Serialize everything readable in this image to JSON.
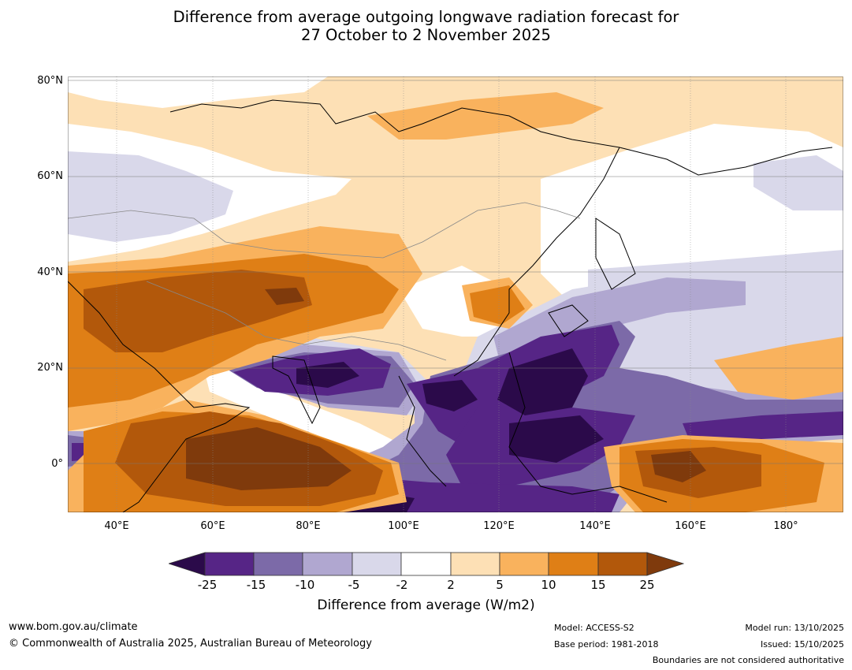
{
  "title": {
    "line1": "Difference from average outgoing longwave radiation forecast for",
    "line2": "27 October to 2 November 2025"
  },
  "axes": {
    "lat_labels": [
      "80°N",
      "60°N",
      "40°N",
      "20°N",
      "0°"
    ],
    "lon_labels": [
      "40°E",
      "60°E",
      "80°E",
      "100°E",
      "120°E",
      "140°E",
      "160°E",
      "180°"
    ],
    "lat_range": [
      -10,
      80
    ],
    "lon_range": [
      30,
      192
    ]
  },
  "colors": {
    "lt25": "#2b0a4a",
    "n25_n15": "#562586",
    "n15_n10": "#7c6aa8",
    "n10_n5": "#b0a7d0",
    "n5_n2": "#d9d8ea",
    "n2_p2": "#ffffff",
    "p2_p5": "#fde0b5",
    "p5_p10": "#f9b25d",
    "p10_p15": "#df7f16",
    "p15_p25": "#b2580b",
    "gt25": "#7f3a0c"
  },
  "colorbar": {
    "ticks": [
      "-25",
      "-15",
      "-10",
      "-5",
      "-2",
      "2",
      "5",
      "10",
      "15",
      "25"
    ],
    "label": "Difference from average (W/m2)"
  },
  "footer": {
    "website": "www.bom.gov.au/climate",
    "copyright": "© Commonwealth of Australia 2025, Australian Bureau of Meteorology",
    "model": "Model: ACCESS-S2",
    "base_period": "Base period: 1981-2018",
    "model_run": "Model run: 13/10/2025",
    "issued": "Issued: 15/10/2025",
    "disclaimer": "Boundaries are not considered authoritative"
  }
}
